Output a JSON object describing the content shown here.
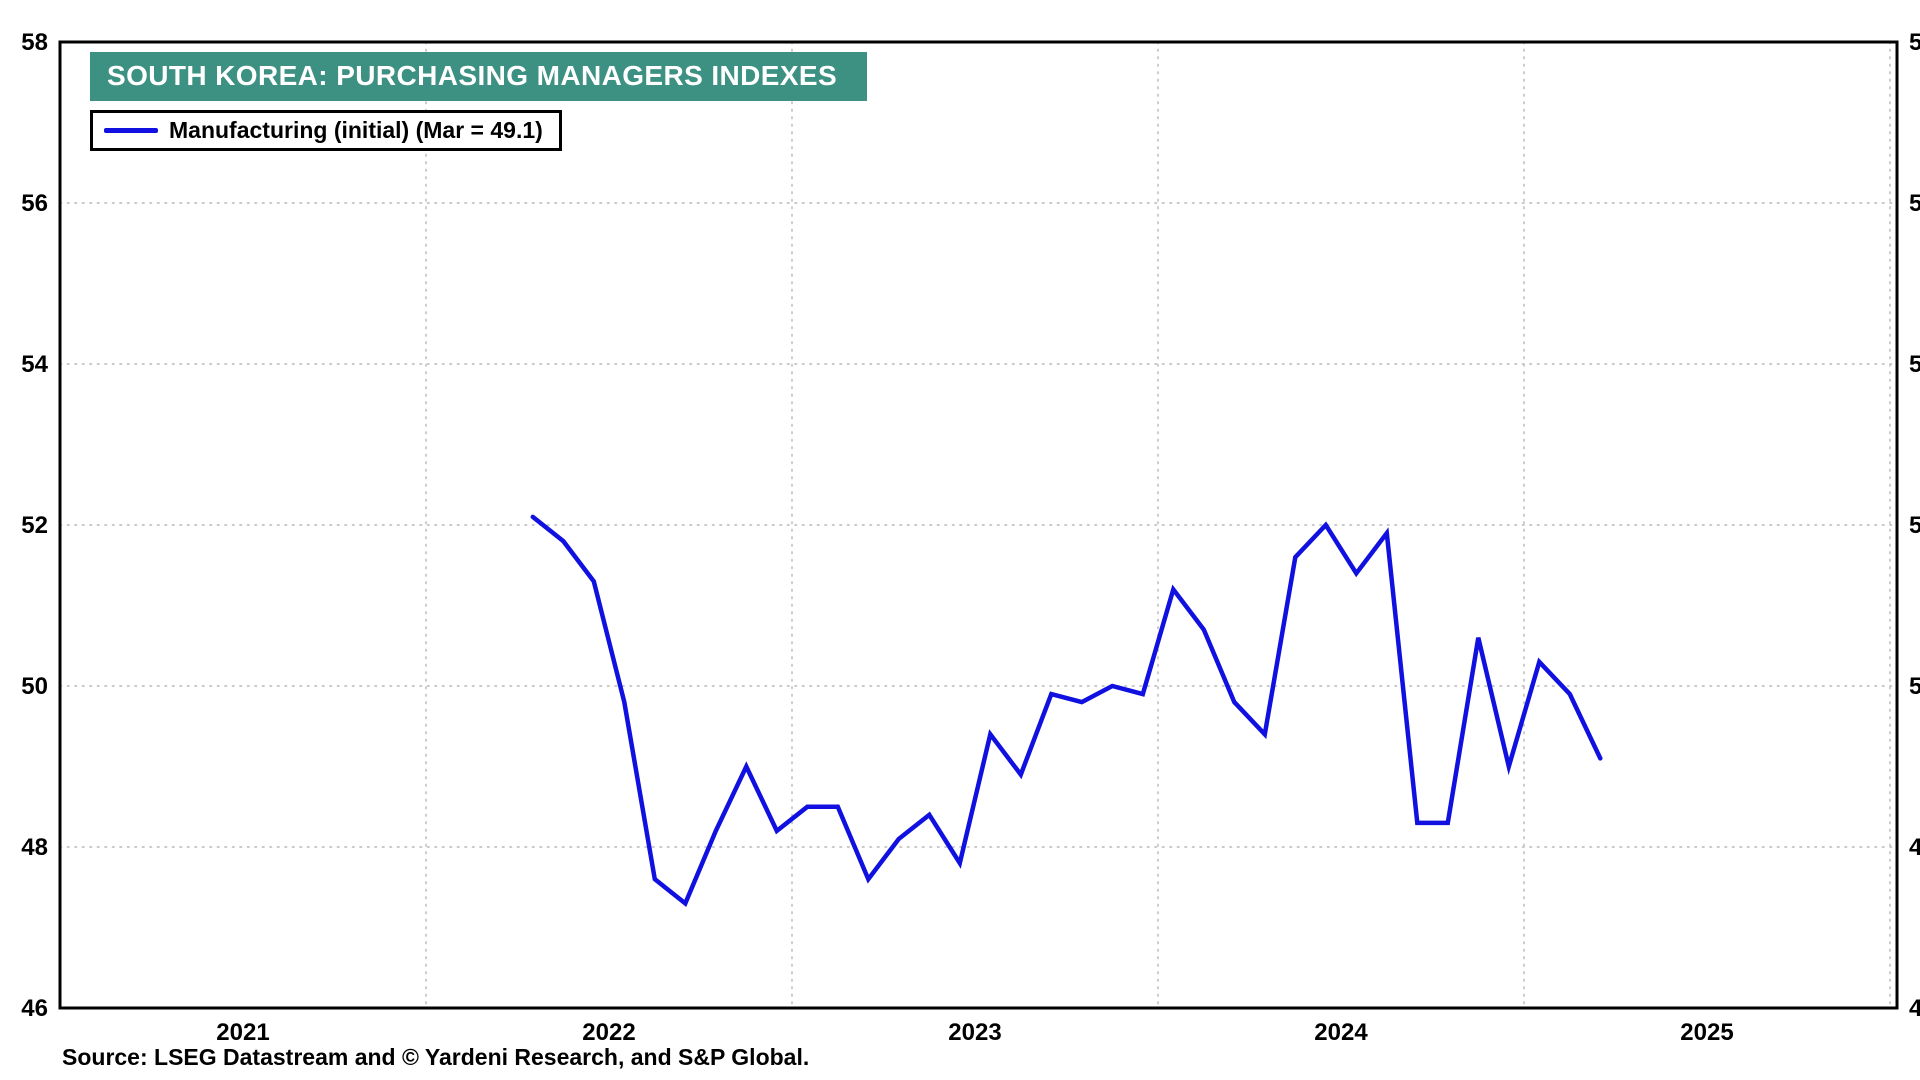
{
  "chart_data": {
    "type": "line",
    "title": "SOUTH KOREA: PURCHASING MANAGERS INDEXES",
    "series": [
      {
        "name": "Manufacturing (initial) (Mar = 49.1)",
        "color": "#1010e0",
        "x": [
          "2022-04",
          "2022-05",
          "2022-06",
          "2022-07",
          "2022-08",
          "2022-09",
          "2022-10",
          "2022-11",
          "2022-12",
          "2023-01",
          "2023-02",
          "2023-03",
          "2023-04",
          "2023-05",
          "2023-06",
          "2023-07",
          "2023-08",
          "2023-09",
          "2023-10",
          "2023-11",
          "2023-12",
          "2024-01",
          "2024-02",
          "2024-03",
          "2024-04",
          "2024-05",
          "2024-06",
          "2024-07",
          "2024-08",
          "2024-09",
          "2024-10",
          "2024-11",
          "2024-12",
          "2025-01",
          "2025-02",
          "2025-03"
        ],
        "values": [
          52.1,
          51.8,
          51.3,
          49.8,
          47.6,
          47.3,
          48.2,
          49.0,
          48.2,
          48.5,
          48.5,
          47.6,
          48.1,
          48.4,
          47.8,
          49.4,
          48.9,
          49.9,
          49.8,
          50.0,
          49.9,
          51.2,
          50.7,
          49.8,
          49.4,
          51.6,
          52.0,
          51.4,
          51.9,
          48.3,
          48.3,
          50.6,
          49.0,
          50.3,
          49.9,
          49.1
        ]
      }
    ],
    "ylim": [
      46,
      58
    ],
    "yticks": [
      46,
      48,
      50,
      52,
      54,
      56,
      58
    ],
    "ygrid": [
      48,
      50,
      52,
      54,
      56
    ],
    "year_start": 2021,
    "year_ticks": [
      2021,
      2022,
      2023,
      2024,
      2025
    ],
    "year_gridlines": [
      2022,
      2023,
      2024,
      2025,
      2026
    ],
    "grid": "dotted",
    "legend_position": "top-left",
    "axis_label_sides": "both",
    "xlabel": "",
    "ylabel": ""
  },
  "footer": {
    "source": "Source: LSEG Datastream and © Yardeni Research, and S&P Global."
  },
  "colors": {
    "line": "#1010e0",
    "title_bg": "#3d9182",
    "title_text": "#ffffff",
    "grid": "#c3c3c3",
    "frame": "#000000",
    "tick_text": "#000000"
  }
}
